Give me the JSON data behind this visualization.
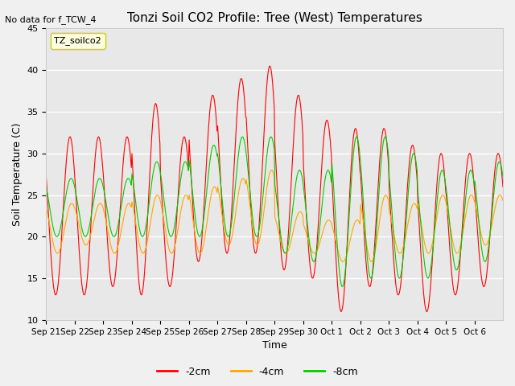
{
  "title": "Tonzi Soil CO2 Profile: Tree (West) Temperatures",
  "subtitle": "No data for f_TCW_4",
  "ylabel": "Soil Temperature (C)",
  "xlabel": "Time",
  "ylim": [
    10,
    45
  ],
  "legend_label": "TZ_soilco2",
  "series_labels": [
    "-2cm",
    "-4cm",
    "-8cm"
  ],
  "series_colors": [
    "#ff0000",
    "#ffa500",
    "#00cc00"
  ],
  "xtick_labels": [
    "Sep 21",
    "Sep 22",
    "Sep 23",
    "Sep 24",
    "Sep 25",
    "Sep 26",
    "Sep 27",
    "Sep 28",
    "Sep 29",
    "Sep 30",
    "Oct 1",
    "Oct 2",
    "Oct 3",
    "Oct 4",
    "Oct 5",
    "Oct 6"
  ],
  "background_color": "#e8e8e8",
  "plot_bg_color": "#e8e8e8",
  "grid_color": "#ffffff",
  "day_peaks_2cm": [
    32,
    32,
    32,
    36,
    32,
    37,
    39,
    40.5,
    37,
    34,
    33,
    33,
    31,
    30,
    30,
    30
  ],
  "day_mins_2cm": [
    13,
    13,
    14,
    13,
    14,
    17,
    18,
    18,
    16,
    15,
    11,
    14,
    13,
    11,
    13,
    14
  ],
  "day_peaks_4cm": [
    24,
    24,
    24,
    25,
    25,
    26,
    27,
    28,
    23,
    22,
    22,
    25,
    24,
    25,
    25,
    25
  ],
  "day_mins_4cm": [
    18,
    19,
    18,
    18,
    18,
    18,
    19,
    19,
    18,
    18,
    17,
    17,
    18,
    18,
    18,
    19
  ],
  "day_peaks_8cm": [
    27,
    27,
    27,
    29,
    29,
    31,
    32,
    32,
    28,
    28,
    32,
    32,
    30,
    28,
    28,
    29
  ],
  "day_mins_8cm": [
    20,
    20,
    20,
    20,
    20,
    20,
    20,
    20,
    18,
    17,
    14,
    15,
    15,
    15,
    16,
    17
  ]
}
